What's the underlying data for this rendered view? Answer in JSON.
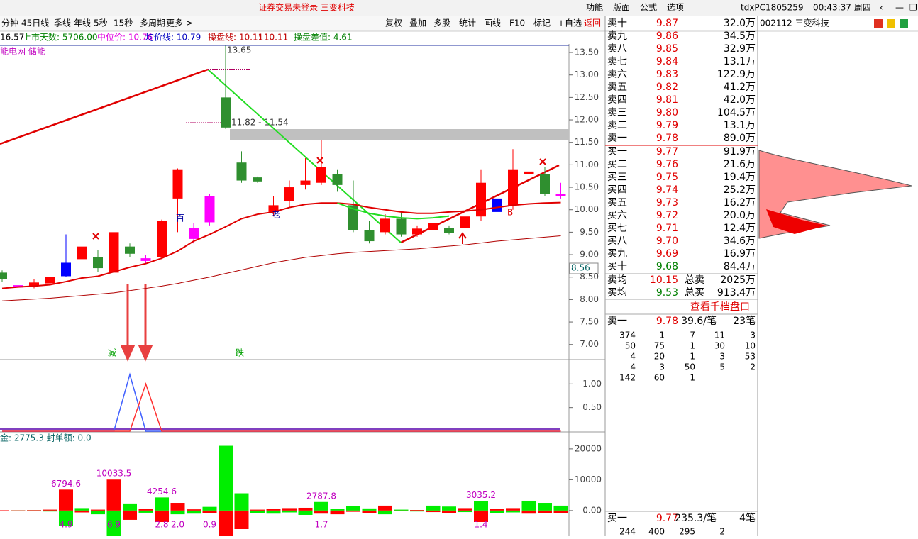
{
  "menu": {
    "notice": "证券交易未登录  三变科技",
    "items": [
      "功能",
      "版面",
      "公式",
      "选项"
    ],
    "user": "tdxPC1805259",
    "clock": "00:43:37 周四"
  },
  "periods": [
    "分钟",
    "45日线",
    "季线",
    "年线",
    "5秒",
    "15秒",
    "多周期",
    "更多 >"
  ],
  "tools": [
    "复权",
    "叠加",
    "多股",
    "统计",
    "画线",
    "F10",
    "标记",
    "+自选",
    "返回"
  ],
  "info": [
    "16.57",
    "上市天数: 5706.00",
    "中位价: 10.76",
    "均价线: 10.79",
    "操盘线: 10.11",
    ": 10.11",
    "操盘差值: 4.61"
  ],
  "concept": "能电网 储能",
  "chart_data": {
    "type": "candlestick",
    "ylim": [
      6.68,
      13.69
    ],
    "yticks": [
      {
        "value": 13.5,
        "label": "13.50"
      },
      {
        "value": 13,
        "label": "13.00"
      },
      {
        "value": 12.5,
        "label": "12.50"
      },
      {
        "value": 12,
        "label": "12.00"
      },
      {
        "value": 11.5,
        "label": "11.50"
      },
      {
        "value": 11,
        "label": "11.00"
      },
      {
        "value": 10.5,
        "label": "10.50"
      },
      {
        "value": 10,
        "label": "10.00"
      },
      {
        "value": 9.5,
        "label": "9.50"
      },
      {
        "value": 9,
        "label": "9.00"
      },
      {
        "value": 8.5,
        "label": "8.50"
      },
      {
        "value": 8,
        "label": "8.00"
      },
      {
        "value": 7.5,
        "label": "7.50"
      },
      {
        "value": 7,
        "label": "7.00"
      }
    ],
    "colors": {
      "r": "#ff0000",
      "g": "#2f8f2f",
      "b": "#0000ff",
      "m": "#ff00ff"
    },
    "candles": {
      "color": [
        "g",
        "m",
        "r",
        "r",
        "b",
        "r",
        "g",
        "r",
        "g",
        "m",
        "r",
        "r",
        "m",
        "m",
        "g",
        "g",
        "g",
        "r",
        "r",
        "r",
        "r",
        "g",
        "g",
        "g",
        "r",
        "g",
        "r",
        "r",
        "g",
        "r",
        "r",
        "b",
        "r",
        "r",
        "g",
        "m"
      ],
      "open": [
        8.6,
        8.32,
        8.3,
        8.36,
        8.52,
        8.9,
        8.95,
        8.6,
        9.18,
        8.92,
        8.95,
        10.25,
        9.35,
        9.72,
        12.5,
        11.05,
        10.72,
        9.95,
        10.2,
        10.55,
        10.6,
        10.8,
        10.1,
        9.55,
        9.5,
        9.8,
        9.45,
        9.55,
        9.6,
        9.6,
        9.85,
        9.95,
        10.1,
        10.8,
        10.8,
        10.3
      ],
      "close": [
        8.45,
        8.27,
        8.38,
        8.5,
        8.82,
        9.18,
        8.7,
        9.5,
        9.02,
        8.86,
        9.75,
        10.9,
        9.6,
        10.3,
        11.83,
        10.65,
        10.63,
        10.1,
        10.5,
        10.65,
        10.95,
        10.55,
        9.55,
        9.3,
        9.8,
        9.45,
        9.58,
        9.7,
        9.48,
        9.85,
        10.6,
        10.25,
        10.9,
        10.85,
        10.35,
        10.35
      ],
      "high": [
        8.65,
        8.36,
        8.45,
        8.62,
        9.45,
        9.2,
        9.1,
        9.5,
        9.25,
        9.0,
        9.78,
        10.92,
        9.7,
        10.35,
        13.65,
        11.3,
        10.74,
        10.3,
        10.65,
        11.15,
        11.55,
        10.9,
        10.65,
        9.75,
        9.9,
        9.95,
        9.65,
        9.75,
        9.65,
        9.9,
        10.9,
        10.3,
        11.35,
        11.05,
        10.95,
        10.6
      ],
      "low": [
        8.4,
        8.22,
        8.25,
        8.32,
        8.5,
        8.85,
        8.62,
        8.55,
        8.95,
        8.8,
        8.9,
        9.5,
        9.25,
        9.65,
        11.8,
        10.6,
        10.6,
        9.85,
        10.05,
        10.45,
        10.55,
        10.4,
        9.5,
        9.25,
        9.45,
        9.4,
        9.4,
        9.5,
        9.45,
        9.55,
        9.75,
        9.9,
        10.0,
        10.65,
        10.3,
        10.25
      ]
    },
    "series": [
      {
        "color": "#e00000",
        "values": [
          8.25,
          8.28,
          8.3,
          8.33,
          8.4,
          8.48,
          8.52,
          8.62,
          8.72,
          8.8,
          8.92,
          9.08,
          9.3,
          9.45,
          9.62,
          9.8,
          9.9,
          9.95,
          10.05,
          10.12,
          10.15,
          10.15,
          10.12,
          10.05,
          10.0,
          9.95,
          9.92,
          9.92,
          9.95,
          9.97,
          10.0,
          10.05,
          10.1,
          10.13,
          10.15,
          10.16
        ]
      },
      {
        "color": "#b00000",
        "values": [
          7.97,
          7.99,
          8.01,
          8.03,
          8.06,
          8.09,
          8.12,
          8.15,
          8.2,
          8.25,
          8.3,
          8.36,
          8.43,
          8.5,
          8.58,
          8.66,
          8.74,
          8.82,
          8.88,
          8.94,
          8.98,
          9.02,
          9.05,
          9.07,
          9.09,
          9.11,
          9.13,
          9.16,
          9.19,
          9.22,
          9.26,
          9.3,
          9.33,
          9.36,
          9.39,
          9.42
        ]
      },
      {
        "color": "#22dd22",
        "values": [
          null,
          null,
          null,
          null,
          null,
          null,
          null,
          null,
          null,
          null,
          null,
          null,
          null,
          null,
          null,
          null,
          null,
          null,
          null,
          null,
          null,
          10.15,
          10.02,
          9.92,
          9.86,
          9.82,
          9.8,
          9.82,
          9.86,
          null,
          null,
          null,
          null,
          null,
          null,
          null
        ]
      }
    ],
    "annotations": [
      "13.65",
      "11.82 - 11.54",
      "百",
      "老",
      "减",
      "跌",
      "B"
    ],
    "last_price": "8.56"
  },
  "signal": {
    "ylim": [
      0,
      1.5
    ],
    "yticks": [
      {
        "value": 1,
        "label": "1.00"
      },
      {
        "value": 0.5,
        "label": "0.50"
      }
    ],
    "series": [
      {
        "color": "#4060ff",
        "values": [
          0,
          0,
          0,
          0,
          0,
          0,
          0,
          0,
          1.2,
          0,
          0,
          0,
          0,
          0,
          0,
          0,
          0,
          0,
          0,
          0,
          0,
          0,
          0,
          0,
          0,
          0,
          0,
          0,
          0,
          0,
          0,
          0,
          0,
          0,
          0,
          0
        ]
      },
      {
        "color": "#ff3030",
        "values": [
          0,
          0,
          0,
          0,
          0,
          0,
          0,
          0,
          0,
          1.0,
          0,
          0,
          0,
          0,
          0,
          0,
          0,
          0,
          0,
          0,
          0,
          0,
          0,
          0,
          0,
          0,
          0,
          0,
          0,
          0,
          0,
          0,
          0,
          0,
          0,
          0
        ]
      }
    ]
  },
  "volume": {
    "header": "金: 2775.3  封单额: 0.0",
    "ylim": [
      -8300,
      24800
    ],
    "yticks": [
      20000,
      10000,
      {
        "value": 0,
        "label": "0.00"
      }
    ],
    "up": [
      120,
      100,
      150,
      300,
      6794.6,
      800,
      300,
      10033.5,
      2300,
      600,
      4254.6,
      2500,
      400,
      1200,
      21000,
      5600,
      300,
      600,
      800,
      900,
      2787.8,
      600,
      1500,
      700,
      1600,
      300,
      200,
      1600,
      1300,
      800,
      3035.2,
      500,
      800,
      3200,
      2500,
      1600
    ],
    "up_labels": [
      null,
      null,
      null,
      null,
      "6794.6",
      null,
      null,
      "10033.5",
      null,
      null,
      "4254.6",
      null,
      null,
      null,
      null,
      null,
      null,
      null,
      null,
      null,
      "2787.8",
      null,
      null,
      null,
      null,
      null,
      null,
      null,
      null,
      null,
      "3035.2",
      null,
      null,
      null,
      null,
      null
    ],
    "up_color": [
      "r",
      "r",
      "r",
      "r",
      "r",
      "g",
      "r",
      "r",
      "g",
      "r",
      "g",
      "r",
      "r",
      "g",
      "g",
      "g",
      "r",
      "r",
      "r",
      "r",
      "g",
      "g",
      "g",
      "g",
      "r",
      "g",
      "r",
      "g",
      "g",
      "r",
      "g",
      "r",
      "r",
      "g",
      "g",
      "g"
    ],
    "down": [
      0,
      -100,
      -200,
      -300,
      -4900,
      -600,
      -1200,
      -8300,
      -3000,
      -700,
      -3700,
      -1200,
      -1000,
      -800,
      -8300,
      -6000,
      -800,
      -1000,
      -600,
      -1400,
      -1000,
      -1200,
      -400,
      -900,
      -1200,
      -200,
      -300,
      -500,
      -800,
      -500,
      -3700,
      -800,
      -600,
      -1000,
      -800,
      -900
    ],
    "down_texts": [
      null,
      null,
      null,
      null,
      "4.9",
      null,
      null,
      "6.9",
      null,
      null,
      "2.8",
      "2.0",
      null,
      "0.9",
      null,
      null,
      null,
      null,
      null,
      null,
      "1.7",
      null,
      null,
      null,
      null,
      null,
      null,
      null,
      null,
      null,
      "1.4",
      null,
      null,
      null,
      null,
      null
    ],
    "colors": {
      "r": "#ff0000",
      "g": "#00ee00"
    }
  },
  "orderbook": {
    "asks": [
      [
        "卖十",
        "9.87",
        "32.0万"
      ],
      [
        "卖九",
        "9.86",
        "34.5万"
      ],
      [
        "卖八",
        "9.85",
        "32.9万"
      ],
      [
        "卖七",
        "9.84",
        "13.1万"
      ],
      [
        "卖六",
        "9.83",
        "122.9万"
      ],
      [
        "卖五",
        "9.82",
        "41.2万"
      ],
      [
        "卖四",
        "9.81",
        "42.0万"
      ],
      [
        "卖三",
        "9.80",
        "104.5万"
      ],
      [
        "卖二",
        "9.79",
        "13.1万"
      ],
      [
        "卖一",
        "9.78",
        "89.0万"
      ]
    ],
    "bids": [
      [
        "买一",
        "9.77",
        "91.9万"
      ],
      [
        "买二",
        "9.76",
        "21.6万"
      ],
      [
        "买三",
        "9.75",
        "19.4万"
      ],
      [
        "买四",
        "9.74",
        "25.2万"
      ],
      [
        "买五",
        "9.73",
        "16.2万"
      ],
      [
        "买六",
        "9.72",
        "20.0万"
      ],
      [
        "买七",
        "9.71",
        "12.4万"
      ],
      [
        "买八",
        "9.70",
        "34.6万"
      ],
      [
        "买九",
        "9.69",
        "16.9万"
      ],
      [
        "买十",
        "9.68",
        "84.4万"
      ]
    ],
    "bid_colors": [
      "#e00000",
      "#e00000",
      "#e00000",
      "#e00000",
      "#e00000",
      "#e00000",
      "#e00000",
      "#e00000",
      "#e00000",
      "#008000"
    ],
    "summary": [
      [
        "卖均",
        "10.15",
        "总卖",
        "2025万"
      ],
      [
        "买均",
        "9.53",
        "总买",
        "913.4万"
      ]
    ],
    "depth_link": "查看千档盘口",
    "ask1": [
      "卖一",
      "9.78",
      "39.6/笔",
      "23笔"
    ],
    "queue": [
      [
        "374",
        "1",
        "7",
        "11",
        "3"
      ],
      [
        "50",
        "75",
        "1",
        "30",
        "10"
      ],
      [
        "4",
        "20",
        "1",
        "3",
        "53"
      ],
      [
        "4",
        "3",
        "50",
        "5",
        "2"
      ],
      [
        "142",
        "60",
        "1"
      ]
    ],
    "bid1": [
      "买一",
      "9.77",
      "235.3/笔",
      "4笔"
    ],
    "bid_queue": [
      "244",
      "400",
      "295",
      "2"
    ]
  },
  "stock": "002112 三变科技"
}
